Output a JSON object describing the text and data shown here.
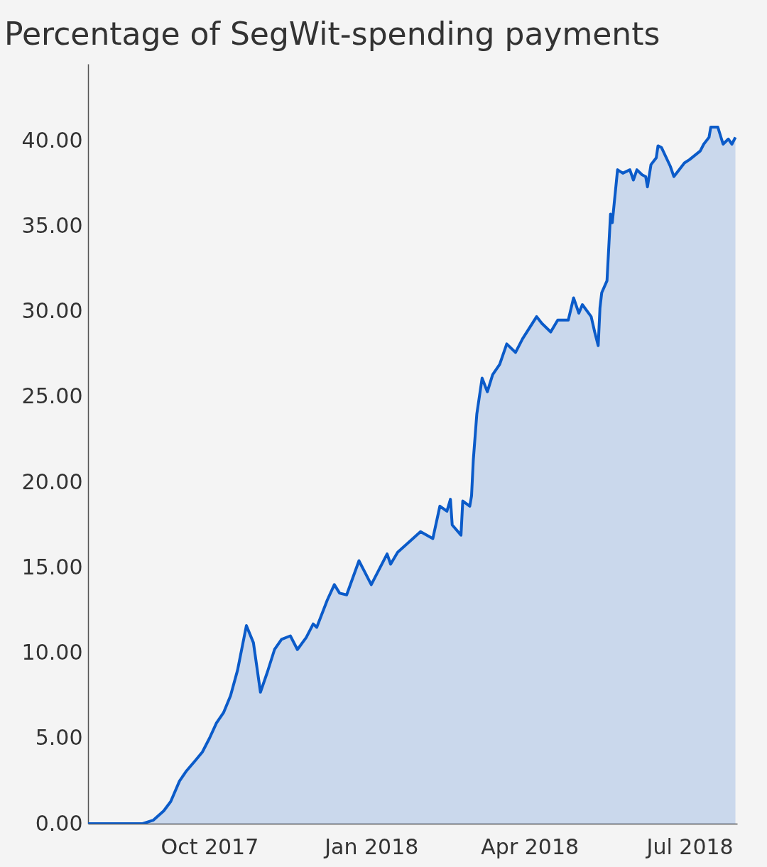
{
  "chart_data": {
    "type": "area",
    "title": "Percentage of SegWit-spending payments",
    "x": [
      "2017-07-24",
      "2017-08-24",
      "2017-08-30",
      "2017-09-05",
      "2017-09-09",
      "2017-09-14",
      "2017-09-18",
      "2017-09-23",
      "2017-09-27",
      "2017-10-01",
      "2017-10-05",
      "2017-10-09",
      "2017-10-13",
      "2017-10-17",
      "2017-10-22",
      "2017-10-26",
      "2017-10-30",
      "2017-11-03",
      "2017-11-07",
      "2017-11-11",
      "2017-11-16",
      "2017-11-20",
      "2017-11-25",
      "2017-11-29",
      "2017-12-01",
      "2017-12-07",
      "2017-12-11",
      "2017-12-14",
      "2017-12-18",
      "2017-12-25",
      "2018-01-01",
      "2018-01-05",
      "2018-01-10",
      "2018-01-12",
      "2018-01-16",
      "2018-01-29",
      "2018-02-05",
      "2018-02-09",
      "2018-02-13",
      "2018-02-15",
      "2018-02-16",
      "2018-02-21",
      "2018-02-22",
      "2018-02-26",
      "2018-02-27",
      "2018-02-28",
      "2018-03-02",
      "2018-03-05",
      "2018-03-08",
      "2018-03-11",
      "2018-03-15",
      "2018-03-19",
      "2018-03-24",
      "2018-03-28",
      "2018-04-05",
      "2018-04-08",
      "2018-04-13",
      "2018-04-17",
      "2018-04-23",
      "2018-04-26",
      "2018-04-29",
      "2018-05-01",
      "2018-05-06",
      "2018-05-08",
      "2018-05-10",
      "2018-05-11",
      "2018-05-12",
      "2018-05-15",
      "2018-05-17",
      "2018-05-18",
      "2018-05-21",
      "2018-05-24",
      "2018-05-28",
      "2018-05-30",
      "2018-06-01",
      "2018-06-04",
      "2018-06-06",
      "2018-06-07",
      "2018-06-09",
      "2018-06-12",
      "2018-06-13",
      "2018-06-15",
      "2018-06-20",
      "2018-06-22",
      "2018-06-28",
      "2018-07-01",
      "2018-07-07",
      "2018-07-09",
      "2018-07-12",
      "2018-07-13",
      "2018-07-17",
      "2018-07-20",
      "2018-07-23",
      "2018-07-25",
      "2018-07-27"
    ],
    "series": [
      {
        "color": "#0b5bc9",
        "values": [
          0,
          0,
          0.2,
          0.75,
          1.3,
          2.5,
          3.1,
          3.7,
          4.2,
          5.0,
          5.9,
          6.5,
          7.5,
          9.0,
          11.6,
          10.6,
          7.7,
          8.9,
          10.2,
          10.8,
          11.0,
          10.2,
          10.9,
          11.7,
          11.5,
          13.1,
          14.0,
          13.5,
          13.4,
          15.4,
          14.0,
          14.8,
          15.8,
          15.2,
          15.9,
          17.1,
          16.7,
          18.6,
          18.3,
          19.0,
          17.5,
          16.9,
          18.9,
          18.6,
          19.2,
          21.3,
          24.0,
          26.1,
          25.3,
          26.3,
          26.9,
          28.1,
          27.6,
          28.4,
          29.7,
          29.3,
          28.8,
          29.5,
          29.5,
          30.8,
          29.9,
          30.4,
          29.7,
          28.8,
          28.0,
          30.2,
          31.1,
          31.8,
          35.7,
          35.2,
          38.3,
          38.1,
          38.3,
          37.7,
          38.3,
          38.0,
          37.9,
          37.3,
          38.6,
          39.0,
          39.7,
          39.6,
          38.5,
          37.9,
          38.7,
          38.9,
          39.4,
          39.8,
          40.2,
          40.8,
          40.8,
          39.8,
          40.1,
          39.8,
          40.2
        ]
      }
    ],
    "xlim": [
      "2017-07-24",
      "2018-07-28"
    ],
    "xticks": [
      {
        "value": "2017-10-01",
        "label": "Oct 2017"
      },
      {
        "value": "2018-01-01",
        "label": "Jan 2018"
      },
      {
        "value": "2018-04-01",
        "label": "Apr 2018"
      },
      {
        "value": "2018-07-01",
        "label": "Jul 2018"
      }
    ],
    "ylim": [
      0,
      44.5
    ],
    "yticks": [
      {
        "value": 0,
        "label": "0.00"
      },
      {
        "value": 5,
        "label": "5.00"
      },
      {
        "value": 10,
        "label": "10.00"
      },
      {
        "value": 15,
        "label": "15.00"
      },
      {
        "value": 20,
        "label": "20.00"
      },
      {
        "value": 25,
        "label": "25.00"
      },
      {
        "value": 30,
        "label": "30.00"
      },
      {
        "value": 35,
        "label": "35.00"
      },
      {
        "value": 40,
        "label": "40.00"
      }
    ],
    "grid": false
  }
}
